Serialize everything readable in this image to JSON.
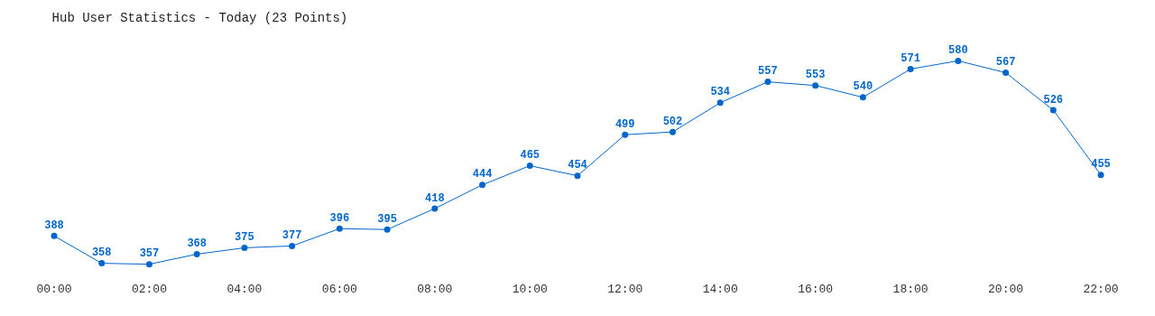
{
  "chart_data": {
    "type": "line",
    "title": "Hub User Statistics - Today (23 Points)",
    "x": [
      0,
      1,
      2,
      3,
      4,
      5,
      6,
      7,
      8,
      9,
      10,
      11,
      12,
      13,
      14,
      15,
      16,
      17,
      18,
      19,
      20,
      21,
      22
    ],
    "series": [
      {
        "color": "#0066cc",
        "values": [
          388,
          358,
          357,
          368,
          375,
          377,
          396,
          395,
          418,
          444,
          465,
          454,
          499,
          502,
          534,
          557,
          553,
          540,
          571,
          580,
          567,
          526,
          455
        ]
      }
    ],
    "xlim": [
      0,
      22
    ],
    "xticks": [
      {
        "value": 0,
        "label": "00:00"
      },
      {
        "value": 2,
        "label": "02:00"
      },
      {
        "value": 4,
        "label": "04:00"
      },
      {
        "value": 6,
        "label": "06:00"
      },
      {
        "value": 8,
        "label": "08:00"
      },
      {
        "value": 10,
        "label": "10:00"
      },
      {
        "value": 12,
        "label": "12:00"
      },
      {
        "value": 14,
        "label": "14:00"
      },
      {
        "value": 16,
        "label": "16:00"
      },
      {
        "value": 18,
        "label": "18:00"
      },
      {
        "value": 20,
        "label": "20:00"
      },
      {
        "value": 22,
        "label": "22:00"
      }
    ],
    "tick_labels": "x",
    "data_labels": true,
    "marker": "circle",
    "line_style": "solid"
  }
}
